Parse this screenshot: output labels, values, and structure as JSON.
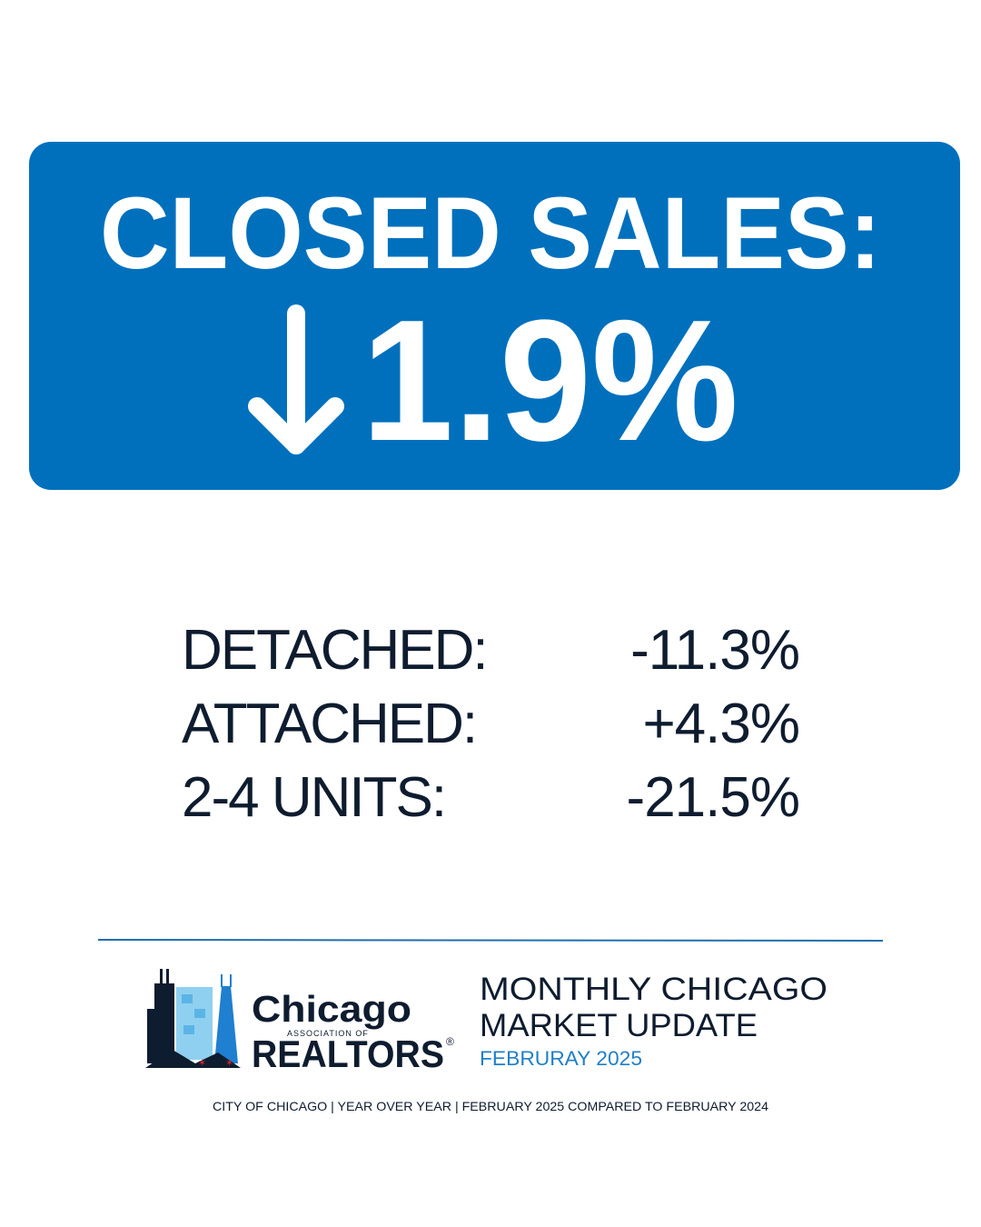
{
  "header": {
    "title": "CLOSED SALES:",
    "change": "1.9%"
  },
  "breakdown": {
    "rows": [
      [
        "DETACHED:",
        "-11.3%"
      ],
      [
        "ATTACHED:",
        "+4.3%"
      ],
      [
        "2-4 UNITS:",
        "-21.5%"
      ]
    ]
  },
  "logo": {
    "name": "Chicago",
    "subtitle": "ASSOCIATION OF",
    "org": "REALTORS",
    "mark": "®"
  },
  "update": {
    "line1": "MONTHLY CHICAGO",
    "line2": "MARKET UPDATE",
    "date": "FEBRURAY 2025"
  },
  "footer": "CITY OF CHICAGO | YEAR OVER YEAR | FEBRUARY 2025 COMPARED TO FEBRUARY 2024"
}
